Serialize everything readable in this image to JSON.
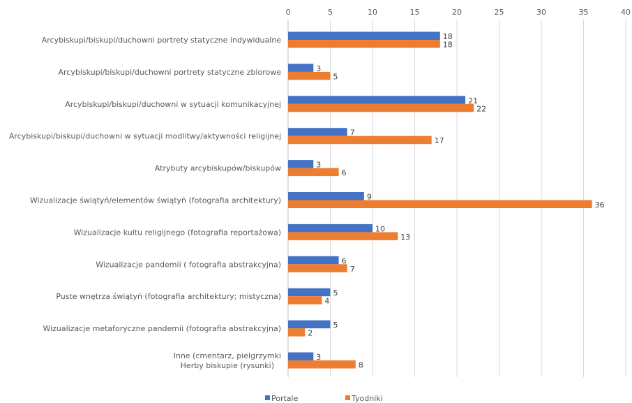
{
  "chart_data": {
    "type": "bar",
    "orientation": "horizontal",
    "title": "",
    "xlabel": "",
    "ylabel": "",
    "xlim": [
      0,
      40
    ],
    "xticks": [
      0,
      5,
      10,
      15,
      20,
      25,
      30,
      35,
      40
    ],
    "x_axis_position": "top",
    "grid": true,
    "legend_position": "bottom",
    "categories": [
      "Arcybiskupi/biskupi/duchowni portrety statyczne indywidualne",
      "Arcybiskupi/biskupi/duchowni portrety statyczne zbiorowe",
      "Arcybiskupi/biskupi/duchowni w sytuacji komunikacyjnej",
      "Arcybiskupi/biskupi/duchowni w sytuacji modlitwy/aktywności religijnej",
      "Atrybuty arcybiskupów/biskupów",
      "Wizualizacje świątyń/elementów świątyń (fotografia architektury)",
      "Wizualizacje kultu religijnego (fotografia reportażowa)",
      "Wizualizacje pandemii ( fotografia abstrakcyjna)",
      "Puste wnętrza świątyń (fotografia architektury; mistyczna)",
      "Wizualizacje metaforyczne pandemii (fotografia abstrakcyjna)",
      "Inne (cmentarz, pielgrzymki\nHerby biskupie (rysunki)"
    ],
    "series": [
      {
        "name": "Portale",
        "color": "#4472C4",
        "values": [
          18,
          3,
          21,
          7,
          3,
          9,
          10,
          6,
          5,
          5,
          3
        ]
      },
      {
        "name": "Tyodniki",
        "color": "#ED7D31",
        "values": [
          18,
          5,
          22,
          17,
          6,
          36,
          13,
          7,
          4,
          2,
          8
        ]
      }
    ]
  }
}
